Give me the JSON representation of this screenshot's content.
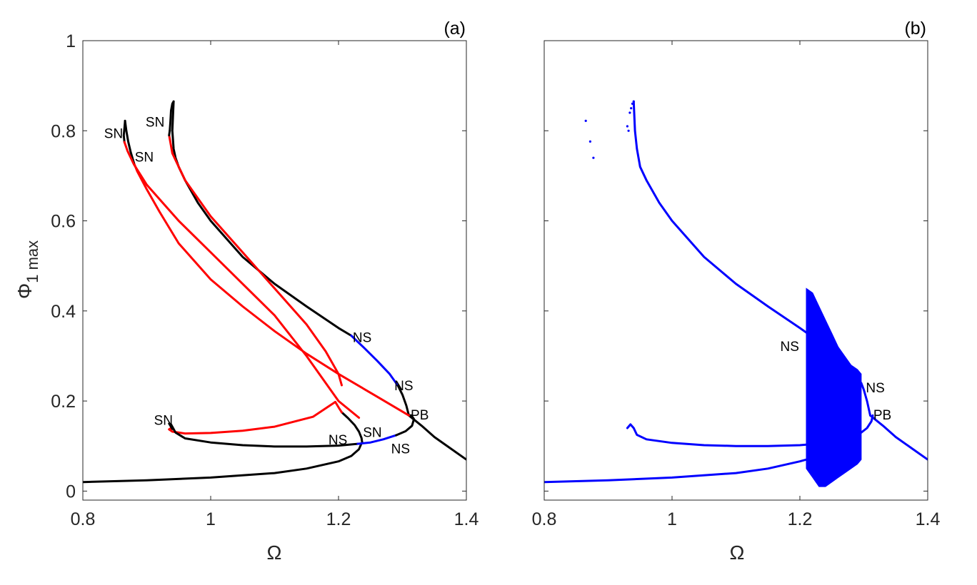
{
  "chart_data": [
    {
      "type": "scatter",
      "panel_label": "(a)",
      "xlabel": "Ω",
      "ylabel_main": "Φ",
      "ylabel_sub": "1 max",
      "xlim": [
        0.8,
        1.4
      ],
      "ylim": [
        -0.02,
        1.0
      ],
      "xticks": [
        0.8,
        1.0,
        1.2,
        1.4
      ],
      "xtick_labels": [
        "0.8",
        "1",
        "1.2",
        "1.4"
      ],
      "yticks": [
        0,
        0.2,
        0.4,
        0.6,
        0.8,
        1.0
      ],
      "ytick_labels": [
        "0",
        "0.2",
        "0.4",
        "0.6",
        "0.8",
        "1"
      ],
      "grid": false,
      "colors": {
        "black": "#000000",
        "red": "#ff0000",
        "blue": "#0000ff"
      },
      "series": [
        {
          "color": "#000000",
          "x": [
            0.8,
            0.9,
            1.0,
            1.1,
            1.15,
            1.2,
            1.22,
            1.232,
            1.236,
            1.237
          ],
          "y": [
            0.02,
            0.024,
            0.03,
            0.04,
            0.05,
            0.066,
            0.078,
            0.093,
            0.106,
            0.108
          ]
        },
        {
          "color": "#000000",
          "x": [
            1.237,
            1.236,
            1.232,
            1.225,
            1.215,
            1.205
          ],
          "y": [
            0.108,
            0.118,
            0.132,
            0.147,
            0.162,
            0.175
          ]
        },
        {
          "color": "#ff0000",
          "x": [
            1.205,
            1.2,
            1.195
          ],
          "y": [
            0.175,
            0.186,
            0.198
          ]
        },
        {
          "color": "#ff0000",
          "x": [
            1.195,
            1.16,
            1.1,
            1.05,
            1.0,
            0.96,
            0.94,
            0.935
          ],
          "y": [
            0.198,
            0.165,
            0.143,
            0.134,
            0.129,
            0.128,
            0.132,
            0.137
          ]
        },
        {
          "color": "#ff0000",
          "x": [
            0.935,
            0.938,
            0.94
          ],
          "y": [
            0.137,
            0.14,
            0.138
          ]
        },
        {
          "color": "#000000",
          "x": [
            0.94,
            0.937,
            0.935,
            0.938,
            0.945,
            0.96,
            1.0,
            1.05,
            1.1,
            1.15,
            1.2,
            1.23
          ],
          "y": [
            0.138,
            0.145,
            0.15,
            0.148,
            0.13,
            0.117,
            0.108,
            0.102,
            0.099,
            0.099,
            0.101,
            0.105
          ]
        },
        {
          "color": "#0000ff",
          "x": [
            1.23,
            1.25,
            1.27,
            1.29
          ],
          "y": [
            0.105,
            0.108,
            0.115,
            0.124
          ]
        },
        {
          "color": "#000000",
          "x": [
            1.29,
            1.305,
            1.315,
            1.318,
            1.314,
            1.31
          ],
          "y": [
            0.124,
            0.133,
            0.145,
            0.16,
            0.168,
            0.168
          ]
        },
        {
          "color": "#000000",
          "x": [
            1.31,
            1.33,
            1.35,
            1.375,
            1.4
          ],
          "y": [
            0.168,
            0.145,
            0.12,
            0.095,
            0.07
          ]
        },
        {
          "color": "#000000",
          "x": [
            0.936,
            0.937,
            0.938,
            0.94,
            0.942
          ],
          "y": [
            0.8,
            0.82,
            0.845,
            0.86,
            0.865
          ]
        },
        {
          "color": "#000000",
          "x": [
            0.942,
            0.94,
            0.942,
            0.945,
            0.95,
            0.96,
            0.98,
            1.0,
            1.05,
            1.1,
            1.15,
            1.2,
            1.22
          ],
          "y": [
            0.865,
            0.8,
            0.76,
            0.74,
            0.72,
            0.69,
            0.64,
            0.6,
            0.52,
            0.46,
            0.41,
            0.362,
            0.345
          ]
        },
        {
          "color": "#0000ff",
          "x": [
            1.22,
            1.24,
            1.26,
            1.28,
            1.293
          ],
          "y": [
            0.345,
            0.318,
            0.29,
            0.26,
            0.234
          ]
        },
        {
          "color": "#000000",
          "x": [
            1.293,
            1.3,
            1.306,
            1.31
          ],
          "y": [
            0.234,
            0.214,
            0.19,
            0.168
          ]
        },
        {
          "color": "#ff0000",
          "x": [
            1.31,
            1.26,
            1.2,
            1.15,
            1.1,
            1.05,
            1.0,
            0.95,
            0.92,
            0.9,
            0.885,
            0.88
          ],
          "y": [
            0.168,
            0.21,
            0.26,
            0.305,
            0.355,
            0.41,
            0.47,
            0.55,
            0.62,
            0.67,
            0.71,
            0.728
          ]
        },
        {
          "color": "#000000",
          "x": [
            0.88,
            0.875,
            0.871,
            0.868,
            0.866
          ],
          "y": [
            0.728,
            0.752,
            0.776,
            0.8,
            0.822
          ]
        },
        {
          "color": "#000000",
          "x": [
            0.866,
            0.865,
            0.864,
            0.865
          ],
          "y": [
            0.822,
            0.805,
            0.79,
            0.775
          ]
        },
        {
          "color": "#ff0000",
          "x": [
            0.865,
            0.87,
            0.88,
            0.9,
            0.95,
            1.0,
            1.05,
            1.1,
            1.15,
            1.2,
            1.232
          ],
          "y": [
            0.775,
            0.755,
            0.725,
            0.68,
            0.6,
            0.53,
            0.46,
            0.39,
            0.3,
            0.2,
            0.163
          ]
        },
        {
          "color": "#ff0000",
          "x": [
            0.935,
            0.94,
            0.96,
            1.0,
            1.05,
            1.1,
            1.15,
            1.18,
            1.2,
            1.205
          ],
          "y": [
            0.79,
            0.75,
            0.69,
            0.61,
            0.53,
            0.45,
            0.37,
            0.31,
            0.26,
            0.235
          ]
        },
        {
          "color": "#000000",
          "x": [
            0.935,
            0.936
          ],
          "y": [
            0.79,
            0.8
          ]
        }
      ],
      "annotations": [
        {
          "text": "SN",
          "x": 0.848,
          "y": 0.795
        },
        {
          "text": "SN",
          "x": 0.896,
          "y": 0.743
        },
        {
          "text": "SN",
          "x": 0.913,
          "y": 0.82
        },
        {
          "text": "SN",
          "x": 0.926,
          "y": 0.158
        },
        {
          "text": "NS",
          "x": 1.237,
          "y": 0.342
        },
        {
          "text": "NS",
          "x": 1.302,
          "y": 0.235
        },
        {
          "text": "PB",
          "x": 1.327,
          "y": 0.17
        },
        {
          "text": "SN",
          "x": 1.253,
          "y": 0.131
        },
        {
          "text": "NS",
          "x": 1.199,
          "y": 0.115
        },
        {
          "text": "NS",
          "x": 1.297,
          "y": 0.095
        }
      ]
    },
    {
      "type": "scatter",
      "panel_label": "(b)",
      "xlabel": "Ω",
      "xlim": [
        0.8,
        1.4
      ],
      "ylim": [
        -0.02,
        1.0
      ],
      "xticks": [
        0.8,
        1.0,
        1.2,
        1.4
      ],
      "xtick_labels": [
        "0.8",
        "1",
        "1.2",
        "1.4"
      ],
      "yticks": [
        0,
        0.2,
        0.4,
        0.6,
        0.8,
        1.0
      ],
      "ytick_labels": [
        "",
        "",
        "",
        "",
        "",
        ""
      ],
      "grid": false,
      "colors": {
        "blue": "#0000ff"
      },
      "series": [
        {
          "color": "#0000ff",
          "x": [
            0.8,
            0.9,
            1.0,
            1.1,
            1.15,
            1.2,
            1.21
          ],
          "y": [
            0.02,
            0.024,
            0.03,
            0.04,
            0.05,
            0.066,
            0.07
          ]
        },
        {
          "color": "#0000ff",
          "x": [
            0.93,
            0.935,
            0.94,
            0.945,
            0.96,
            1.0,
            1.05,
            1.1,
            1.15,
            1.2,
            1.21
          ],
          "y": [
            0.14,
            0.148,
            0.14,
            0.125,
            0.115,
            0.107,
            0.102,
            0.1,
            0.1,
            0.102,
            0.103
          ]
        },
        {
          "color": "#0000ff",
          "x": [
            0.94,
            0.942,
            0.945,
            0.95,
            0.96,
            0.98,
            1.0,
            1.05,
            1.1,
            1.15,
            1.2,
            1.21
          ],
          "y": [
            0.865,
            0.8,
            0.76,
            0.72,
            0.69,
            0.64,
            0.6,
            0.52,
            0.46,
            0.41,
            0.362,
            0.352
          ]
        },
        {
          "color": "#0000ff",
          "x": [
            1.296,
            1.3,
            1.305,
            1.31
          ],
          "y": [
            0.24,
            0.225,
            0.2,
            0.168
          ]
        },
        {
          "color": "#0000ff",
          "x": [
            1.31,
            1.33,
            1.35,
            1.375,
            1.4
          ],
          "y": [
            0.168,
            0.145,
            0.12,
            0.095,
            0.07
          ]
        },
        {
          "color": "#0000ff",
          "x": [
            1.296,
            1.305,
            1.312,
            1.314
          ],
          "y": [
            0.13,
            0.14,
            0.155,
            0.168
          ]
        }
      ],
      "scatter_points": [
        {
          "color": "#0000ff",
          "x": [
            0.865,
            0.872,
            0.877,
            0.93,
            0.932,
            0.934,
            0.936,
            0.938,
            0.94
          ],
          "y": [
            0.822,
            0.776,
            0.74,
            0.81,
            0.8,
            0.84,
            0.85,
            0.86,
            0.865
          ]
        }
      ],
      "cloud": {
        "color": "#0000ff",
        "x": [
          1.21,
          1.22,
          1.23,
          1.24,
          1.25,
          1.26,
          1.27,
          1.28,
          1.29,
          1.296
        ],
        "ymin": [
          0.05,
          0.03,
          0.01,
          0.01,
          0.02,
          0.03,
          0.04,
          0.05,
          0.06,
          0.07
        ],
        "ymax": [
          0.45,
          0.44,
          0.41,
          0.38,
          0.35,
          0.32,
          0.3,
          0.28,
          0.27,
          0.26
        ]
      },
      "annotations": [
        {
          "text": "NS",
          "x": 1.184,
          "y": 0.322
        },
        {
          "text": "NS",
          "x": 1.318,
          "y": 0.23
        },
        {
          "text": "PB",
          "x": 1.329,
          "y": 0.17
        }
      ]
    }
  ]
}
